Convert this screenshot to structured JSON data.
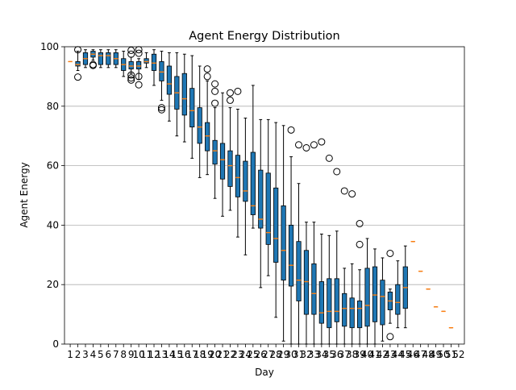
{
  "chart_data": {
    "type": "box",
    "title": "Agent Energy Distribution",
    "xlabel": "Day",
    "ylabel": "Agent Energy",
    "ylim": [
      0,
      100
    ],
    "y_ticks": [
      0,
      20,
      40,
      60,
      80,
      100
    ],
    "grid": "horizontal",
    "colors": {
      "box_fill": "#1f77b4",
      "median": "#ff7f0e",
      "grid": "#b0b0b0"
    },
    "boxes": [
      {
        "day": "1",
        "whislo": 95,
        "q1": 95,
        "med": 95,
        "q3": 95,
        "whishi": 95,
        "fliers": []
      },
      {
        "day": "2",
        "whislo": 92,
        "q1": 93.5,
        "med": 94,
        "q3": 95,
        "whishi": 98.5,
        "fliers": [
          89.8,
          99
        ]
      },
      {
        "day": "3",
        "whislo": 93,
        "q1": 94,
        "med": 96,
        "q3": 98,
        "whishi": 99,
        "fliers": []
      },
      {
        "day": "4",
        "whislo": 95.5,
        "q1": 96.5,
        "med": 97.5,
        "q3": 98.5,
        "whishi": 99,
        "fliers": [
          94,
          93.7
        ]
      },
      {
        "day": "5",
        "whislo": 93,
        "q1": 94,
        "med": 97,
        "q3": 98,
        "whishi": 99,
        "fliers": []
      },
      {
        "day": "6",
        "whislo": 93,
        "q1": 94,
        "med": 97,
        "q3": 98,
        "whishi": 99,
        "fliers": []
      },
      {
        "day": "7",
        "whislo": 93,
        "q1": 94,
        "med": 96,
        "q3": 98,
        "whishi": 99,
        "fliers": []
      },
      {
        "day": "8",
        "whislo": 90,
        "q1": 92,
        "med": 94,
        "q3": 96,
        "whishi": 98.5,
        "fliers": []
      },
      {
        "day": "9",
        "whislo": 91,
        "q1": 92.5,
        "med": 93.5,
        "q3": 95,
        "whishi": 96.5,
        "fliers": [
          90.5,
          89.5,
          88.8,
          97.5,
          98.8
        ]
      },
      {
        "day": "10",
        "whislo": 89,
        "q1": 92.5,
        "med": 93.5,
        "q3": 95,
        "whishi": 96,
        "fliers": [
          87.2,
          90,
          97.8,
          99
        ]
      },
      {
        "day": "11",
        "whislo": 93,
        "q1": 94.5,
        "med": 95,
        "q3": 96,
        "whishi": 98,
        "fliers": []
      },
      {
        "day": "12",
        "whislo": 87,
        "q1": 92,
        "med": 94.5,
        "q3": 97.5,
        "whishi": 99,
        "fliers": []
      },
      {
        "day": "13",
        "whislo": 82,
        "q1": 88.5,
        "med": 91.5,
        "q3": 95,
        "whishi": 98.5,
        "fliers": [
          79.5,
          78.8
        ]
      },
      {
        "day": "14",
        "whislo": 75,
        "q1": 84,
        "med": 87.5,
        "q3": 93.5,
        "whishi": 98,
        "fliers": []
      },
      {
        "day": "15",
        "whislo": 70,
        "q1": 79,
        "med": 84.5,
        "q3": 90,
        "whishi": 98,
        "fliers": []
      },
      {
        "day": "16",
        "whislo": 68,
        "q1": 77,
        "med": 82.5,
        "q3": 91,
        "whishi": 97.5,
        "fliers": []
      },
      {
        "day": "17",
        "whislo": 62.5,
        "q1": 73,
        "med": 78.5,
        "q3": 86,
        "whishi": 97,
        "fliers": []
      },
      {
        "day": "18",
        "whislo": 56,
        "q1": 67.5,
        "med": 73,
        "q3": 79.5,
        "whishi": 93.5,
        "fliers": []
      },
      {
        "day": "19",
        "whislo": 57,
        "q1": 65,
        "med": 70,
        "q3": 74.5,
        "whishi": 88.5,
        "fliers": [
          90,
          92.5
        ]
      },
      {
        "day": "20",
        "whislo": 49,
        "q1": 60.5,
        "med": 65,
        "q3": 68.5,
        "whishi": 79.5,
        "fliers": [
          81,
          85,
          87.5
        ]
      },
      {
        "day": "21",
        "whislo": 43,
        "q1": 55.5,
        "med": 62,
        "q3": 67.5,
        "whishi": 84.5,
        "fliers": []
      },
      {
        "day": "22",
        "whislo": 45,
        "q1": 53,
        "med": 60,
        "q3": 65,
        "whishi": 79.5,
        "fliers": [
          82,
          84.5
        ]
      },
      {
        "day": "23",
        "whislo": 36,
        "q1": 49.5,
        "med": 56,
        "q3": 63.5,
        "whishi": 79,
        "fliers": [
          85
        ]
      },
      {
        "day": "24",
        "whislo": 30,
        "q1": 48,
        "med": 51.5,
        "q3": 61.5,
        "whishi": 76,
        "fliers": []
      },
      {
        "day": "25",
        "whislo": 39,
        "q1": 43.5,
        "med": 46.5,
        "q3": 64.5,
        "whishi": 87,
        "fliers": []
      },
      {
        "day": "26",
        "whislo": 19,
        "q1": 39,
        "med": 42,
        "q3": 58.5,
        "whishi": 75.5,
        "fliers": []
      },
      {
        "day": "27",
        "whislo": 23,
        "q1": 33.5,
        "med": 37.5,
        "q3": 57.5,
        "whishi": 75.5,
        "fliers": []
      },
      {
        "day": "28",
        "whislo": 9,
        "q1": 27.5,
        "med": 35.5,
        "q3": 52.5,
        "whishi": 74.5,
        "fliers": []
      },
      {
        "day": "29",
        "whislo": 1,
        "q1": 21.5,
        "med": 31.5,
        "q3": 46.5,
        "whishi": 73.5,
        "fliers": []
      },
      {
        "day": "30",
        "whislo": 0,
        "q1": 19.5,
        "med": 26.5,
        "q3": 40,
        "whishi": 63,
        "fliers": [
          72
        ]
      },
      {
        "day": "31",
        "whislo": 0,
        "q1": 14.5,
        "med": 21.5,
        "q3": 34.5,
        "whishi": 54,
        "fliers": [
          67
        ]
      },
      {
        "day": "32",
        "whislo": 0,
        "q1": 10,
        "med": 21,
        "q3": 31.5,
        "whishi": 41,
        "fliers": [
          66
        ]
      },
      {
        "day": "33",
        "whislo": 0,
        "q1": 10,
        "med": 17,
        "q3": 27,
        "whishi": 41,
        "fliers": [
          67
        ]
      },
      {
        "day": "34",
        "whislo": 0,
        "q1": 7,
        "med": 10.5,
        "q3": 21,
        "whishi": 37,
        "fliers": [
          68
        ]
      },
      {
        "day": "35",
        "whislo": 0,
        "q1": 5.5,
        "med": 11,
        "q3": 22,
        "whishi": 36.5,
        "fliers": [
          62.5
        ]
      },
      {
        "day": "36",
        "whislo": 0,
        "q1": 7.5,
        "med": 11,
        "q3": 22,
        "whishi": 38,
        "fliers": [
          58
        ]
      },
      {
        "day": "37",
        "whislo": 0,
        "q1": 6,
        "med": 12,
        "q3": 17,
        "whishi": 25.5,
        "fliers": [
          51.5
        ]
      },
      {
        "day": "38",
        "whislo": 0,
        "q1": 5.5,
        "med": 12,
        "q3": 15.5,
        "whishi": 27,
        "fliers": [
          50.5
        ]
      },
      {
        "day": "39",
        "whislo": 0,
        "q1": 5.5,
        "med": 12,
        "q3": 14.5,
        "whishi": 25,
        "fliers": [
          40.5,
          33.5
        ]
      },
      {
        "day": "40",
        "whislo": 0,
        "q1": 6,
        "med": 13,
        "q3": 25.5,
        "whishi": 35.5,
        "fliers": []
      },
      {
        "day": "41",
        "whislo": 0,
        "q1": 7.5,
        "med": 16.5,
        "q3": 26,
        "whishi": 32,
        "fliers": []
      },
      {
        "day": "42",
        "whislo": 1,
        "q1": 6.5,
        "med": 16,
        "q3": 21.5,
        "whishi": 29,
        "fliers": []
      },
      {
        "day": "43",
        "whislo": 7,
        "q1": 11.5,
        "med": 14.5,
        "q3": 17.5,
        "whishi": 18.5,
        "fliers": [
          30.5,
          2.5
        ]
      },
      {
        "day": "44",
        "whislo": 5.5,
        "q1": 10,
        "med": 14,
        "q3": 20,
        "whishi": 28,
        "fliers": []
      },
      {
        "day": "45",
        "whislo": 5.5,
        "q1": 12,
        "med": 19,
        "q3": 26,
        "whishi": 33,
        "fliers": []
      },
      {
        "day": "46",
        "whislo": 34.5,
        "q1": 34.5,
        "med": 34.5,
        "q3": 34.5,
        "whishi": 34.5,
        "fliers": []
      },
      {
        "day": "47",
        "whislo": 24.5,
        "q1": 24.5,
        "med": 24.5,
        "q3": 24.5,
        "whishi": 24.5,
        "fliers": []
      },
      {
        "day": "48",
        "whislo": 18.5,
        "q1": 18.5,
        "med": 18.5,
        "q3": 18.5,
        "whishi": 18.5,
        "fliers": []
      },
      {
        "day": "49",
        "whislo": 12.5,
        "q1": 12.5,
        "med": 12.5,
        "q3": 12.5,
        "whishi": 12.5,
        "fliers": []
      },
      {
        "day": "50",
        "whislo": 11,
        "q1": 11,
        "med": 11,
        "q3": 11,
        "whishi": 11,
        "fliers": []
      },
      {
        "day": "51",
        "whislo": 5.5,
        "q1": 5.5,
        "med": 5.5,
        "q3": 5.5,
        "whishi": 5.5,
        "fliers": []
      },
      {
        "day": "52",
        "whislo": null,
        "q1": null,
        "med": null,
        "q3": null,
        "whishi": null,
        "fliers": []
      }
    ]
  }
}
